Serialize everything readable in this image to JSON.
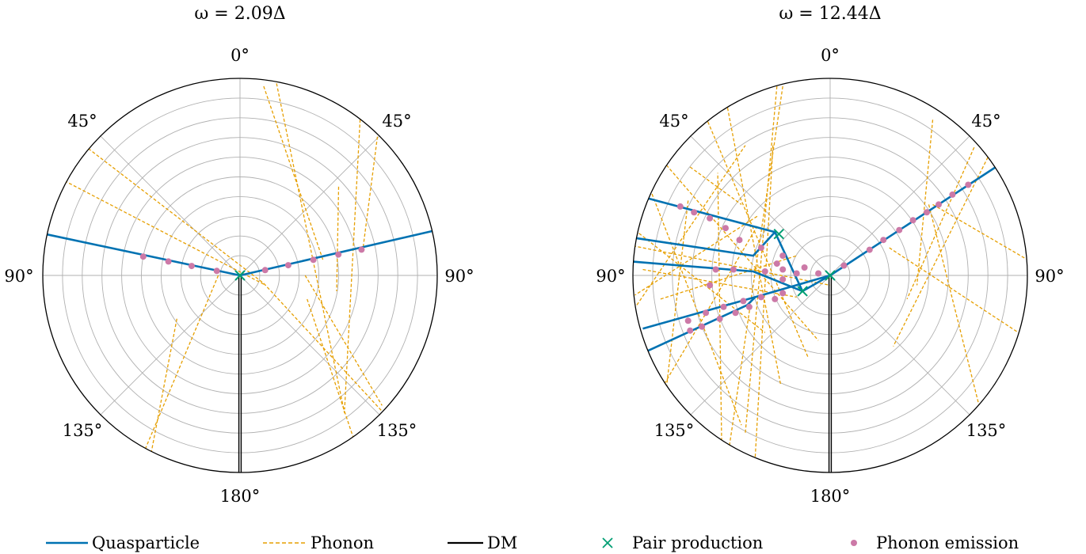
{
  "chart_data": [
    {
      "type": "polar",
      "title": "ω = 2.09Δ",
      "angle_labels": {
        "top": "0°",
        "upper_left": "45°",
        "upper_right": "45°",
        "left": "90°",
        "right": "90°",
        "lower_left": "135°",
        "lower_right": "135°",
        "bottom": "180°"
      },
      "grid": true,
      "quasiparticle": [
        {
          "angle": -78,
          "r": [
            0,
            1.02
          ]
        },
        {
          "angle": 77,
          "r": [
            0,
            1.02
          ]
        }
      ],
      "phonon_emission": [
        {
          "angle": -79,
          "r": 0.12
        },
        {
          "angle": -79,
          "r": 0.25
        },
        {
          "angle": -79,
          "r": 0.37
        },
        {
          "angle": -79,
          "r": 0.5
        },
        {
          "angle": 78,
          "r": 0.13
        },
        {
          "angle": 78,
          "r": 0.25
        },
        {
          "angle": 78,
          "r": 0.38
        },
        {
          "angle": 78,
          "r": 0.51
        },
        {
          "angle": 78,
          "r": 0.63
        }
      ],
      "phonon": [
        [
          [
            -0.79,
            0.66
          ],
          [
            0.12,
            -0.04
          ]
        ],
        [
          [
            -0.89,
            0.48
          ],
          [
            0.13,
            -0.05
          ]
        ],
        [
          [
            0.18,
            1.0
          ],
          [
            0.53,
            -0.7
          ]
        ],
        [
          [
            0.62,
            1.0
          ],
          [
            0.53,
            -0.68
          ]
        ],
        [
          [
            0.12,
            0.96
          ],
          [
            0.42,
            0.08
          ]
        ],
        [
          [
            0.7,
            0.73
          ],
          [
            0.62,
            0.11
          ]
        ],
        [
          [
            0.33,
            0.0
          ],
          [
            0.72,
            -0.66
          ]
        ],
        [
          [
            0.12,
            -0.04
          ],
          [
            0.73,
            -0.7
          ]
        ],
        [
          [
            0.34,
            -0.12
          ],
          [
            0.58,
            -0.84
          ]
        ],
        [
          [
            0.5,
            0.45
          ],
          [
            0.49,
            -0.08
          ]
        ],
        [
          [
            -0.11,
            0.0
          ],
          [
            -0.48,
            -0.88
          ]
        ],
        [
          [
            -0.32,
            -0.22
          ],
          [
            -0.45,
            -0.9
          ]
        ]
      ],
      "dm": {
        "angle": 180,
        "r": [
          0,
          1.0
        ]
      },
      "pair_production": [
        {
          "angle": 0,
          "r": 0
        }
      ]
    },
    {
      "type": "polar",
      "title": "ω = 12.44Δ",
      "angle_labels": {
        "top": "0°",
        "upper_left": "45°",
        "upper_right": "45°",
        "left": "90°",
        "right": "90°",
        "lower_left": "135°",
        "lower_right": "135°",
        "bottom": "180°"
      },
      "grid": true,
      "quasiparticle": [
        {
          "points": [
            [
              0,
              0
            ],
            [
              0.84,
              0.55
            ]
          ]
        },
        {
          "points": [
            [
              0,
              0
            ],
            [
              -0.14,
              -0.08
            ],
            [
              -0.28,
              0.22
            ],
            [
              -0.92,
              0.39
            ]
          ]
        },
        {
          "points": [
            [
              -0.28,
              0.22
            ],
            [
              -0.39,
              0.1
            ],
            [
              -0.99,
              0.19
            ]
          ]
        },
        {
          "points": [
            [
              -0.14,
              -0.08
            ],
            [
              -0.39,
              0.02
            ],
            [
              -1.0,
              0.07
            ]
          ]
        },
        {
          "points": [
            [
              0,
              0
            ],
            [
              -0.38,
              -0.11
            ],
            [
              -0.95,
              -0.27
            ]
          ]
        },
        {
          "points": [
            [
              -0.38,
              -0.11
            ],
            [
              -0.42,
              -0.15
            ],
            [
              -0.94,
              -0.39
            ]
          ]
        }
      ],
      "phonon_emission": [
        {
          "x": 0.07,
          "y": 0.05
        },
        {
          "x": 0.2,
          "y": 0.13
        },
        {
          "x": 0.27,
          "y": 0.18
        },
        {
          "x": 0.35,
          "y": 0.23
        },
        {
          "x": 0.42,
          "y": 0.28
        },
        {
          "x": 0.49,
          "y": 0.32
        },
        {
          "x": 0.55,
          "y": 0.36
        },
        {
          "x": 0.62,
          "y": 0.41
        },
        {
          "x": 0.7,
          "y": 0.46
        },
        {
          "x": -0.06,
          "y": 0.01
        },
        {
          "x": -0.24,
          "y": 0.03
        },
        {
          "x": -0.27,
          "y": 0.06
        },
        {
          "x": -0.24,
          "y": 0.1
        },
        {
          "x": -0.35,
          "y": 0.14
        },
        {
          "x": -0.46,
          "y": 0.18
        },
        {
          "x": -0.53,
          "y": 0.24
        },
        {
          "x": -0.61,
          "y": 0.29
        },
        {
          "x": -0.69,
          "y": 0.32
        },
        {
          "x": -0.76,
          "y": 0.35
        },
        {
          "x": -0.13,
          "y": 0.04
        },
        {
          "x": -0.17,
          "y": 0.01
        },
        {
          "x": -0.24,
          "y": -0.02
        },
        {
          "x": -0.33,
          "y": 0.02
        },
        {
          "x": -0.49,
          "y": 0.03
        },
        {
          "x": -0.58,
          "y": 0.03
        },
        {
          "x": -0.24,
          "y": -0.09
        },
        {
          "x": -0.28,
          "y": -0.12
        },
        {
          "x": -0.35,
          "y": -0.11
        },
        {
          "x": -0.44,
          "y": -0.13
        },
        {
          "x": -0.54,
          "y": -0.16
        },
        {
          "x": -0.63,
          "y": -0.19
        },
        {
          "x": -0.72,
          "y": -0.23
        },
        {
          "x": -0.41,
          "y": -0.16
        },
        {
          "x": -0.48,
          "y": -0.19
        },
        {
          "x": -0.56,
          "y": -0.22
        },
        {
          "x": -0.65,
          "y": -0.26
        },
        {
          "x": -0.71,
          "y": -0.28
        },
        {
          "x": -0.61,
          "y": -0.05
        }
      ],
      "phonon": [
        [
          [
            -0.62,
            0.78
          ],
          [
            -0.11,
            -0.42
          ]
        ],
        [
          [
            -0.52,
            0.85
          ],
          [
            -0.25,
            -0.56
          ]
        ],
        [
          [
            -0.83,
            0.56
          ],
          [
            -0.06,
            -0.33
          ]
        ],
        [
          [
            -0.96,
            0.56
          ],
          [
            -0.45,
            -0.76
          ]
        ],
        [
          [
            -0.27,
            0.96
          ],
          [
            -0.43,
            -0.8
          ]
        ],
        [
          [
            -0.24,
            0.96
          ],
          [
            -0.51,
            -0.86
          ]
        ],
        [
          [
            0.8,
            0.6
          ],
          [
            0.32,
            -0.36
          ]
        ],
        [
          [
            0.73,
            0.65
          ],
          [
            0.39,
            -0.12
          ]
        ],
        [
          [
            0.52,
            0.79
          ],
          [
            0.44,
            -0.05
          ]
        ],
        [
          [
            0.52,
            0.36
          ],
          [
            1.0,
            0.08
          ]
        ],
        [
          [
            0.5,
            0.36
          ],
          [
            0.8,
            -0.84
          ]
        ],
        [
          [
            0.3,
            0.14
          ],
          [
            1.0,
            -0.32
          ]
        ],
        [
          [
            -0.37,
            0.3
          ],
          [
            -0.99,
            -0.1
          ]
        ],
        [
          [
            -0.99,
            0.23
          ],
          [
            -0.33,
            -0.29
          ]
        ],
        [
          [
            -1.0,
            0.15
          ],
          [
            0.0,
            -0.05
          ]
        ],
        [
          [
            -0.95,
            0.03
          ],
          [
            -0.17,
            -0.11
          ]
        ],
        [
          [
            -0.86,
            -0.12
          ],
          [
            -0.17,
            0.1
          ]
        ],
        [
          [
            -0.98,
            -0.15
          ],
          [
            -0.43,
            0.66
          ]
        ],
        [
          [
            -0.84,
            -0.55
          ],
          [
            -0.37,
            0.25
          ]
        ],
        [
          [
            -0.83,
            -0.57
          ],
          [
            -0.72,
            0.38
          ]
        ],
        [
          [
            -0.55,
            -0.84
          ],
          [
            -0.57,
            0.52
          ]
        ],
        [
          [
            -0.38,
            -0.92
          ],
          [
            -0.29,
            0.66
          ]
        ],
        [
          [
            -0.71,
            0.55
          ],
          [
            -0.45,
            0.36
          ]
        ]
      ],
      "dm": {
        "angle": 180,
        "r": [
          0,
          1.0
        ]
      },
      "pair_production": [
        {
          "x": 0.0,
          "y": 0.0
        },
        {
          "x": -0.26,
          "y": 0.21
        },
        {
          "x": -0.14,
          "y": -0.08
        }
      ]
    }
  ],
  "legend": {
    "placement": "bottom",
    "items": [
      {
        "label": "Quasparticle",
        "kind": "solid-line",
        "color": "#0072b2"
      },
      {
        "label": "Phonon",
        "kind": "dashed-line",
        "color": "#e69f00"
      },
      {
        "label": "DM",
        "kind": "solid-line",
        "color": "#000000"
      },
      {
        "label": "Pair production",
        "kind": "x-marker",
        "color": "#009e73"
      },
      {
        "label": "Phonon emission",
        "kind": "dot-marker",
        "color": "#cc79a7"
      }
    ]
  },
  "colors": {
    "quasiparticle": "#0072b2",
    "phonon": "#e69f00",
    "dm": "#000000",
    "pair": "#009e73",
    "emission": "#cc79a7",
    "grid": "#b0b0b0"
  }
}
